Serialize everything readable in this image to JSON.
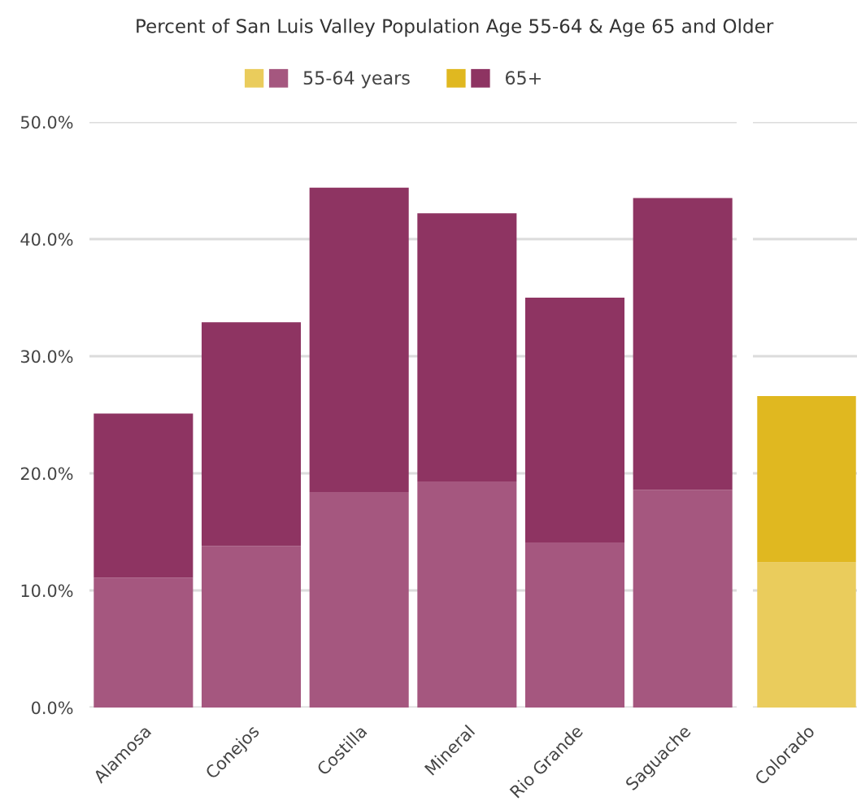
{
  "chart_data": [
    {
      "type": "bar",
      "title": "Percent of San Luis Valley Population Age 55-64 & Age 65 and Older",
      "stacked": true,
      "categories": [
        "Alamosa",
        "Conejos",
        "Costilla",
        "Mineral",
        "Rio Grande",
        "Saguache"
      ],
      "series": [
        {
          "name": "55-64 years",
          "color": "#a5577f",
          "values": [
            11.1,
            13.8,
            18.4,
            19.3,
            14.1,
            18.6
          ]
        },
        {
          "name": "65+",
          "color": "#8e3462",
          "values": [
            14.0,
            19.1,
            26.0,
            22.9,
            20.9,
            24.9
          ]
        }
      ],
      "ylim": [
        0,
        50
      ],
      "yticks": [
        {
          "value": 0,
          "label": "0.0%"
        },
        {
          "value": 10,
          "label": "10.0%"
        },
        {
          "value": 20,
          "label": "20.0%"
        },
        {
          "value": 30,
          "label": "30.0%"
        },
        {
          "value": 40,
          "label": "40.0%"
        },
        {
          "value": 50,
          "label": "50.0%"
        }
      ],
      "grid": "y",
      "legend": "top"
    },
    {
      "type": "bar",
      "stacked": true,
      "categories": [
        "Colorado"
      ],
      "series": [
        {
          "color": "#eacc5c",
          "values": [
            12.4
          ]
        },
        {
          "color": "#e0b820",
          "values": [
            14.2
          ]
        }
      ],
      "ylim": [
        0,
        50
      ],
      "yticks": [
        0,
        10,
        20,
        30,
        40,
        50
      ],
      "grid": "y",
      "tick_labels": "x"
    }
  ]
}
